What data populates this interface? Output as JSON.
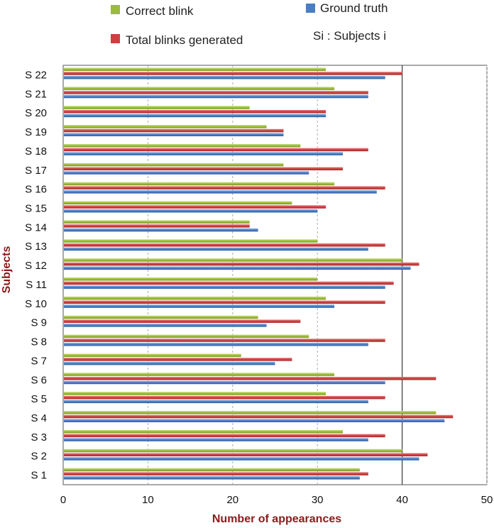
{
  "chart_data": {
    "type": "bar",
    "orientation": "horizontal",
    "categories": [
      "S 1",
      "S 2",
      "S 3",
      "S 4",
      "S 5",
      "S 6",
      "S 7",
      "S 8",
      "S 9",
      "S 10",
      "S 11",
      "S 12",
      "S 13",
      "S 14",
      "S 15",
      "S 16",
      "S 17",
      "S 18",
      "S 19",
      "S 20",
      "S 21",
      "S 22"
    ],
    "series": [
      {
        "name": "Correct blink",
        "color": "#9bbb3b",
        "values": [
          35,
          40,
          33,
          44,
          31,
          32,
          21,
          29,
          23,
          31,
          30,
          40,
          30,
          22,
          27,
          32,
          26,
          28,
          24,
          22,
          32,
          31
        ]
      },
      {
        "name": "Total blinks generated",
        "color": "#cc4040",
        "values": [
          36,
          43,
          38,
          46,
          38,
          44,
          27,
          38,
          28,
          38,
          39,
          42,
          38,
          22,
          31,
          38,
          33,
          36,
          26,
          31,
          36,
          40
        ]
      },
      {
        "name": "Ground truth",
        "color": "#4a7ec4",
        "values": [
          35,
          42,
          36,
          45,
          36,
          38,
          25,
          36,
          24,
          32,
          38,
          41,
          36,
          23,
          30,
          37,
          29,
          33,
          26,
          31,
          36,
          38
        ]
      }
    ],
    "legend_extra": "Si : Subjects i",
    "xlabel": "Number of appearances",
    "ylabel": "Subjects",
    "xlim": [
      0,
      50
    ],
    "xticks": [
      "0",
      "10",
      "20",
      "30",
      "40",
      "50"
    ],
    "grid": true
  }
}
